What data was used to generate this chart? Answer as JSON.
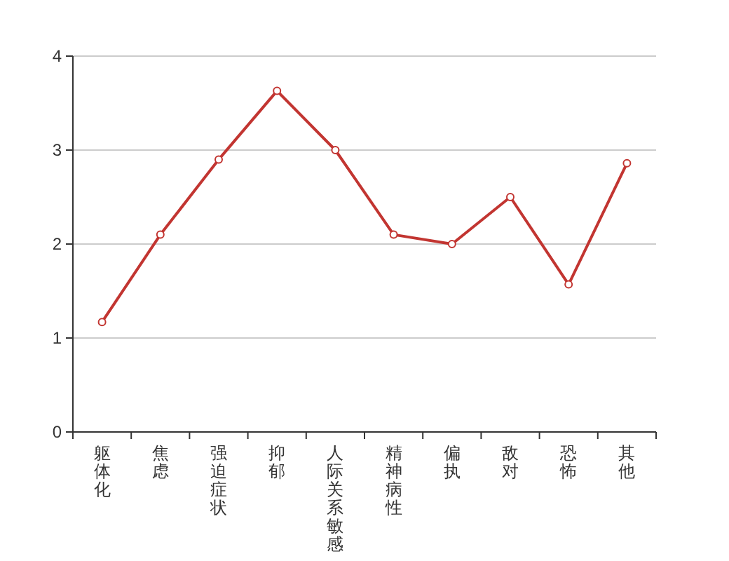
{
  "chart_data": {
    "type": "line",
    "categories": [
      "躯体化",
      "焦虑",
      "强迫症状",
      "抑郁",
      "人际关系敏感",
      "精神病性",
      "偏执",
      "敌对",
      "恐怖",
      "其他"
    ],
    "series": [
      {
        "color": "#c23531",
        "values": [
          1.17,
          2.1,
          2.9,
          3.63,
          3.0,
          2.1,
          2.0,
          2.5,
          1.57,
          2.86
        ]
      }
    ],
    "ylim": [
      0,
      4
    ],
    "yticks": [
      0,
      1,
      2,
      3,
      4
    ],
    "grid": "y",
    "marker": "circle",
    "line_style": "solid"
  }
}
